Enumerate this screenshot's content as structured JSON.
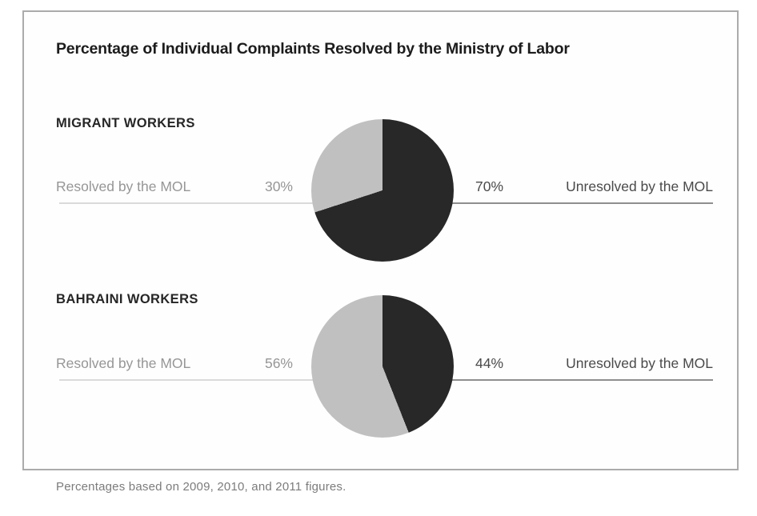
{
  "figure": {
    "title": "Percentage of Individual Complaints Resolved by the Ministry of Labor",
    "footnote": "Percentages based on 2009, 2010, and 2011 figures."
  },
  "colors": {
    "unresolved_slice": "#282828",
    "resolved_slice": "#c0c0c0",
    "resolved_text": "#969696",
    "unresolved_text": "#4a4a4a",
    "left_leader_line": "#dadada",
    "right_leader_line": "#8e8e8e",
    "frame_border": "#ababab"
  },
  "chart_data": [
    {
      "type": "pie",
      "title": "MIGRANT WORKERS",
      "start_angle": "12 o'clock",
      "direction": "clockwise",
      "slices": [
        {
          "label": "Unresolved by the MOL",
          "value": 70,
          "display": "70%",
          "color": "#282828"
        },
        {
          "label": "Resolved by the MOL",
          "value": 30,
          "display": "30%",
          "color": "#c0c0c0"
        }
      ],
      "left_label": "Resolved by the MOL",
      "left_value": "30%",
      "right_value": "70%",
      "right_label": "Unresolved by the MOL"
    },
    {
      "type": "pie",
      "title": "BAHRAINI WORKERS",
      "start_angle": "12 o'clock",
      "direction": "clockwise",
      "slices": [
        {
          "label": "Unresolved by the MOL",
          "value": 44,
          "display": "44%",
          "color": "#282828"
        },
        {
          "label": "Resolved by the MOL",
          "value": 56,
          "display": "56%",
          "color": "#c0c0c0"
        }
      ],
      "left_label": "Resolved by the MOL",
      "left_value": "56%",
      "right_value": "44%",
      "right_label": "Unresolved by the MOL"
    }
  ]
}
